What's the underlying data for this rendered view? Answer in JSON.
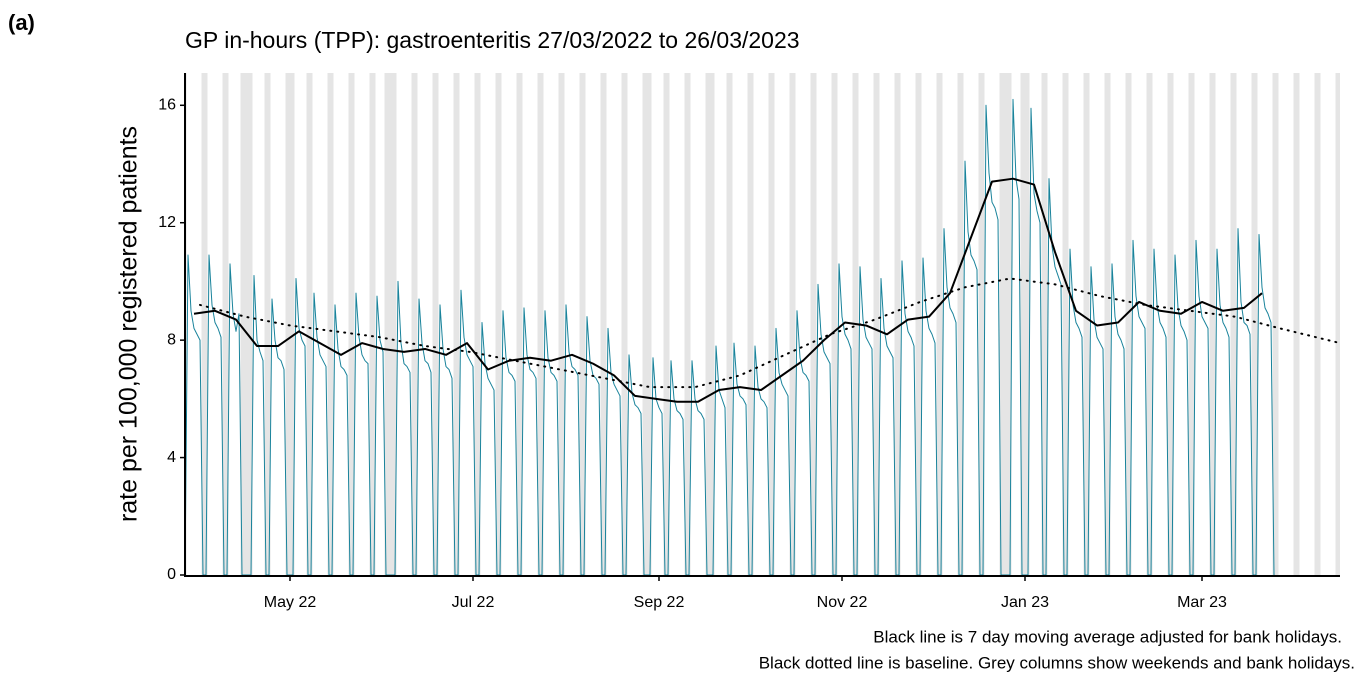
{
  "panel_label": "(a)",
  "chart_data": {
    "type": "line",
    "title": "GP in-hours (TPP): gastroenteritis 27/03/2022 to 26/03/2023",
    "y_label": "rate per 100,000 registered patients",
    "notes": [
      "Black line is 7 day moving average adjusted for bank holidays.",
      "Black dotted line is baseline. Grey columns show weekends and bank holidays."
    ],
    "xlim": [
      0,
      385
    ],
    "xticks": [
      {
        "value": 35,
        "label": "May 22"
      },
      {
        "value": 96,
        "label": "Jul 22"
      },
      {
        "value": 158,
        "label": "Sep 22"
      },
      {
        "value": 219,
        "label": "Nov 22"
      },
      {
        "value": 280,
        "label": "Jan 23"
      },
      {
        "value": 339,
        "label": "Mar 23"
      }
    ],
    "ylim": [
      0,
      17.1
    ],
    "yticks": [
      0,
      4,
      8,
      12,
      16
    ],
    "shade_color": "#e5e5e5",
    "shaded_days": [
      0,
      6,
      7,
      13,
      14,
      20,
      21,
      27,
      28,
      34,
      35,
      41,
      42,
      48,
      49,
      55,
      56,
      62,
      63,
      69,
      70,
      76,
      77,
      83,
      84,
      90,
      91,
      97,
      98,
      104,
      105,
      111,
      112,
      118,
      119,
      125,
      126,
      132,
      133,
      139,
      140,
      146,
      147,
      153,
      154,
      160,
      161,
      167,
      168,
      174,
      175,
      181,
      182,
      188,
      189,
      195,
      196,
      202,
      203,
      209,
      210,
      216,
      217,
      223,
      224,
      230,
      231,
      237,
      238,
      244,
      245,
      251,
      252,
      258,
      259,
      265,
      266,
      272,
      273,
      279,
      280,
      286,
      287,
      293,
      294,
      300,
      301,
      307,
      308,
      314,
      315,
      321,
      322,
      328,
      329,
      335,
      336,
      342,
      343,
      349,
      350,
      356,
      357,
      363,
      364,
      370,
      371,
      377,
      378,
      384,
      385,
      19,
      22,
      36,
      67,
      68,
      155,
      176,
      274,
      275,
      281
    ],
    "series": [
      {
        "color": "#19839b",
        "width": 1,
        "dash": "solid",
        "x": [
          0,
          1,
          2,
          3,
          4,
          5,
          6,
          7,
          8,
          9,
          10,
          11,
          12,
          13,
          14,
          15,
          16,
          17,
          18,
          19,
          20,
          21,
          22,
          23,
          24,
          25,
          26,
          27,
          28,
          29,
          30,
          31,
          32,
          33,
          34,
          35,
          36,
          37,
          38,
          39,
          40,
          41,
          42,
          43,
          44,
          45,
          46,
          47,
          48,
          49,
          50,
          51,
          52,
          53,
          54,
          55,
          56,
          57,
          58,
          59,
          60,
          61,
          62,
          63,
          64,
          65,
          66,
          67,
          68,
          69,
          70,
          71,
          72,
          73,
          74,
          75,
          76,
          77,
          78,
          79,
          80,
          81,
          82,
          83,
          84,
          85,
          86,
          87,
          88,
          89,
          90,
          91,
          92,
          93,
          94,
          95,
          96,
          97,
          98,
          99,
          100,
          101,
          102,
          103,
          104,
          105,
          106,
          107,
          108,
          109,
          110,
          111,
          112,
          113,
          114,
          115,
          116,
          117,
          118,
          119,
          120,
          121,
          122,
          123,
          124,
          125,
          126,
          127,
          128,
          129,
          130,
          131,
          132,
          133,
          134,
          135,
          136,
          137,
          138,
          139,
          140,
          141,
          142,
          143,
          144,
          145,
          146,
          147,
          148,
          149,
          150,
          151,
          152,
          153,
          154,
          155,
          156,
          157,
          158,
          159,
          160,
          161,
          162,
          163,
          164,
          165,
          166,
          167,
          168,
          169,
          170,
          171,
          172,
          173,
          174,
          175,
          176,
          177,
          178,
          179,
          180,
          181,
          182,
          183,
          184,
          185,
          186,
          187,
          188,
          189,
          190,
          191,
          192,
          193,
          194,
          195,
          196,
          197,
          198,
          199,
          200,
          201,
          202,
          203,
          204,
          205,
          206,
          207,
          208,
          209,
          210,
          211,
          212,
          213,
          214,
          215,
          216,
          217,
          218,
          219,
          220,
          221,
          222,
          223,
          224,
          225,
          226,
          227,
          228,
          229,
          230,
          231,
          232,
          233,
          234,
          235,
          236,
          237,
          238,
          239,
          240,
          241,
          242,
          243,
          244,
          245,
          246,
          247,
          248,
          249,
          250,
          251,
          252,
          253,
          254,
          255,
          256,
          257,
          258,
          259,
          260,
          261,
          262,
          263,
          264,
          265,
          266,
          267,
          268,
          269,
          270,
          271,
          272,
          273,
          274,
          275,
          276,
          277,
          278,
          279,
          280,
          281,
          282,
          283,
          284,
          285,
          286,
          287,
          288,
          289,
          290,
          291,
          292,
          293,
          294,
          295,
          296,
          297,
          298,
          299,
          300,
          301,
          302,
          303,
          304,
          305,
          306,
          307,
          308,
          309,
          310,
          311,
          312,
          313,
          314,
          315,
          316,
          317,
          318,
          319,
          320,
          321,
          322,
          323,
          324,
          325,
          326,
          327,
          328,
          329,
          330,
          331,
          332,
          333,
          334,
          335,
          336,
          337,
          338,
          339,
          340,
          341,
          342,
          343,
          344,
          345,
          346,
          347,
          348,
          349,
          350,
          351,
          352,
          353,
          354,
          355,
          356,
          357,
          358,
          359,
          360,
          361,
          362,
          363
        ],
        "values": [
          0,
          10.9,
          9.0,
          8.4,
          8.2,
          8.0,
          0,
          0,
          10.9,
          9.2,
          8.6,
          8.4,
          8.1,
          0,
          0,
          10.6,
          8.9,
          8.3,
          8.9,
          0,
          0,
          0,
          0,
          10.2,
          8.0,
          7.6,
          7.3,
          0,
          0,
          9.4,
          8.0,
          7.4,
          7.3,
          7.0,
          0,
          0,
          0,
          10.1,
          8.4,
          8.0,
          7.8,
          0,
          0,
          9.6,
          8.1,
          7.5,
          7.3,
          7.1,
          0,
          0,
          9.2,
          7.7,
          7.1,
          7.0,
          6.8,
          0,
          0,
          9.6,
          8.1,
          7.5,
          7.3,
          7.2,
          0,
          0,
          9.5,
          8.0,
          7.6,
          0,
          0,
          0,
          0,
          10.0,
          7.9,
          7.2,
          7.1,
          6.9,
          0,
          0,
          9.4,
          7.9,
          7.3,
          7.2,
          6.9,
          0,
          0,
          9.2,
          7.7,
          7.1,
          7.0,
          6.7,
          0,
          0,
          9.7,
          8.1,
          7.5,
          7.3,
          7.1,
          0,
          0,
          8.6,
          7.2,
          6.7,
          6.5,
          6.3,
          0,
          0,
          9.0,
          7.4,
          6.9,
          6.8,
          6.6,
          0,
          0,
          9.1,
          7.5,
          7.0,
          6.9,
          6.7,
          0,
          0,
          9.0,
          7.4,
          6.9,
          6.8,
          6.6,
          0,
          0,
          9.2,
          7.6,
          7.1,
          7.0,
          6.8,
          0,
          0,
          8.8,
          7.3,
          6.8,
          6.7,
          6.5,
          0,
          0,
          8.4,
          6.9,
          6.5,
          6.3,
          6.1,
          0,
          0,
          7.5,
          6.2,
          5.8,
          5.7,
          5.5,
          0,
          0,
          0,
          7.4,
          6.0,
          5.7,
          5.5,
          0,
          0,
          7.3,
          6.0,
          5.6,
          5.5,
          5.3,
          0,
          0,
          7.3,
          6.0,
          5.6,
          5.5,
          5.3,
          0,
          0,
          0,
          7.8,
          6.3,
          6.0,
          5.7,
          0,
          0,
          7.9,
          6.5,
          6.1,
          6.0,
          5.8,
          0,
          0,
          7.8,
          6.4,
          6.0,
          5.9,
          5.7,
          0,
          0,
          8.4,
          6.9,
          6.5,
          6.3,
          6.1,
          0,
          0,
          9.0,
          7.4,
          6.9,
          6.8,
          6.6,
          0,
          0,
          9.9,
          8.2,
          7.6,
          7.4,
          7.2,
          0,
          0,
          10.6,
          8.8,
          8.2,
          8.0,
          7.7,
          0,
          0,
          10.5,
          8.7,
          8.1,
          7.9,
          7.7,
          0,
          0,
          10.1,
          8.4,
          7.8,
          7.6,
          7.4,
          0,
          0,
          10.7,
          8.9,
          8.3,
          8.1,
          7.8,
          0,
          0,
          10.8,
          9.0,
          8.4,
          8.2,
          7.9,
          0,
          0,
          11.8,
          9.8,
          9.1,
          8.9,
          8.6,
          0,
          0,
          14.1,
          11.7,
          10.9,
          10.7,
          10.4,
          0,
          0,
          16.0,
          13.7,
          12.7,
          12.5,
          12.1,
          0,
          0,
          0,
          0,
          16.2,
          13.5,
          12.8,
          0,
          0,
          0,
          15.9,
          13.0,
          12.4,
          12.0,
          0,
          0,
          13.5,
          11.2,
          10.5,
          10.2,
          9.9,
          0,
          0,
          11.1,
          9.2,
          8.6,
          8.4,
          8.1,
          0,
          0,
          10.5,
          8.7,
          8.1,
          7.9,
          7.7,
          0,
          0,
          10.6,
          8.8,
          8.2,
          8.0,
          7.7,
          0,
          0,
          11.4,
          9.5,
          8.8,
          8.6,
          8.4,
          0,
          0,
          11.1,
          9.2,
          8.6,
          8.4,
          8.1,
          0,
          0,
          10.9,
          9.1,
          8.5,
          8.3,
          8.0,
          0,
          0,
          11.4,
          9.5,
          8.8,
          8.6,
          8.4,
          0,
          0,
          11.1,
          9.2,
          8.6,
          8.4,
          8.1,
          0,
          0,
          11.8,
          9.3,
          8.6,
          8.5,
          8.2,
          0,
          0,
          11.6,
          9.8,
          9.1,
          8.9,
          8.6,
          0
        ]
      },
      {
        "color": "#000000",
        "width": 2,
        "dash": "solid",
        "x": [
          3,
          10,
          17,
          24,
          31,
          38,
          45,
          52,
          59,
          66,
          73,
          80,
          87,
          94,
          101,
          108,
          115,
          122,
          129,
          136,
          143,
          150,
          157,
          164,
          171,
          178,
          185,
          192,
          199,
          206,
          213,
          220,
          227,
          234,
          241,
          248,
          255,
          262,
          269,
          276,
          283,
          290,
          297,
          304,
          311,
          318,
          325,
          332,
          339,
          346,
          353,
          359
        ],
        "values": [
          8.9,
          9.0,
          8.7,
          7.8,
          7.8,
          8.3,
          7.9,
          7.5,
          7.9,
          7.7,
          7.6,
          7.7,
          7.5,
          7.9,
          7.0,
          7.3,
          7.4,
          7.3,
          7.5,
          7.2,
          6.8,
          6.1,
          6.0,
          5.9,
          5.9,
          6.3,
          6.4,
          6.3,
          6.8,
          7.3,
          8.0,
          8.6,
          8.5,
          8.2,
          8.7,
          8.8,
          9.6,
          11.5,
          13.4,
          13.5,
          13.3,
          11.0,
          9.0,
          8.5,
          8.6,
          9.3,
          9.0,
          8.9,
          9.3,
          9.0,
          9.1,
          9.6
        ]
      },
      {
        "color": "#000000",
        "width": 2,
        "dash": "dotted",
        "x": [
          5,
          20,
          35,
          50,
          65,
          80,
          95,
          110,
          125,
          140,
          155,
          170,
          185,
          200,
          215,
          230,
          245,
          260,
          275,
          290,
          305,
          320,
          335,
          350,
          365,
          385
        ],
        "values": [
          9.2,
          8.8,
          8.5,
          8.3,
          8.1,
          7.8,
          7.6,
          7.3,
          7.0,
          6.7,
          6.4,
          6.4,
          6.8,
          7.5,
          8.2,
          8.7,
          9.3,
          9.8,
          10.1,
          9.9,
          9.5,
          9.2,
          9.0,
          8.8,
          8.4,
          7.9
        ]
      }
    ]
  }
}
